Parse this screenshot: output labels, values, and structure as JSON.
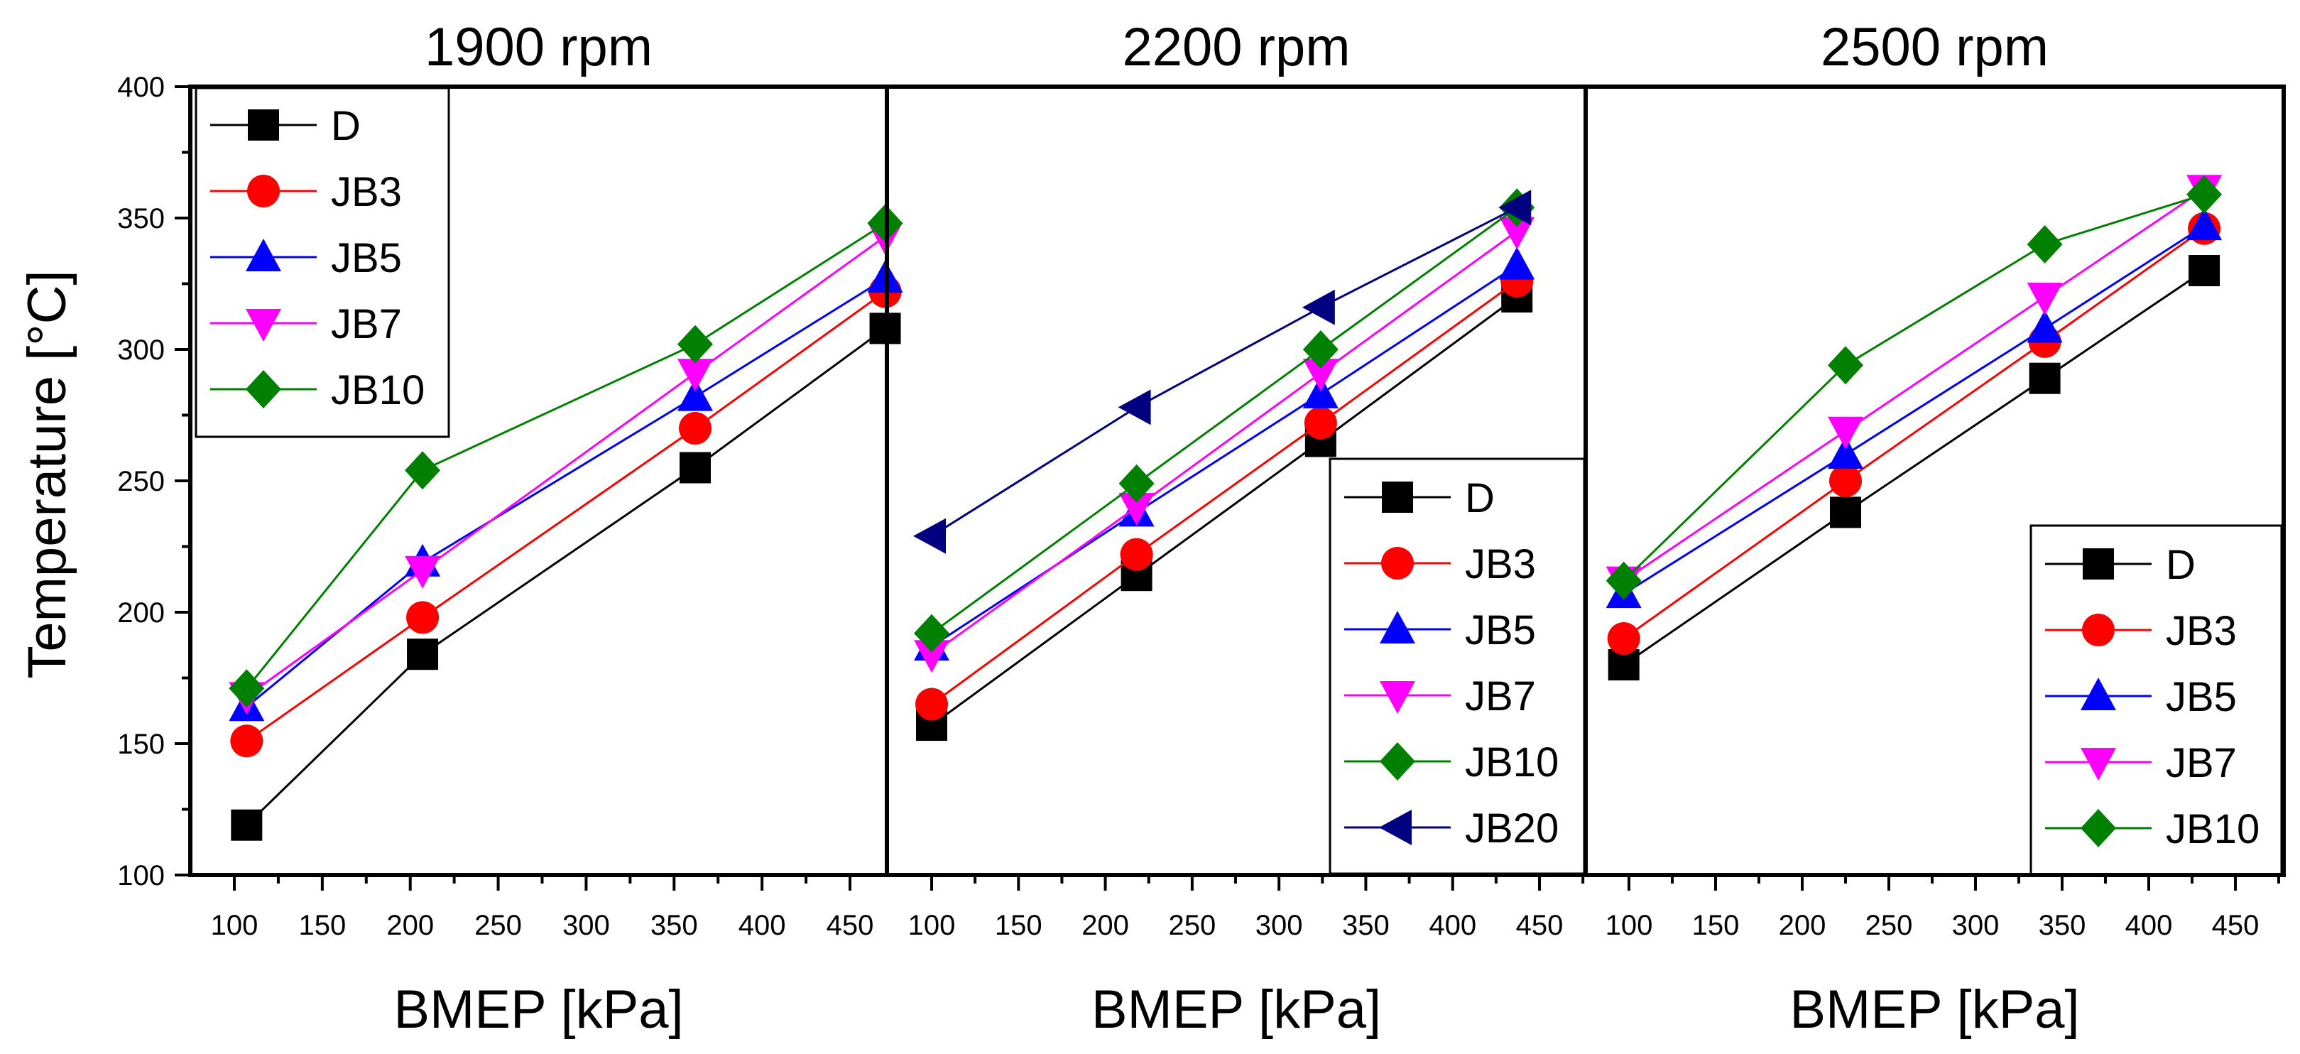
{
  "chart_data": {
    "type": "line",
    "ylabel": "Temperature [°C]",
    "ylim": [
      100,
      400
    ],
    "yticks": [
      100,
      150,
      200,
      250,
      300,
      350,
      400
    ],
    "xlim": [
      80,
      490
    ],
    "xticks": [
      100,
      150,
      200,
      250,
      300,
      350,
      400,
      450
    ],
    "xlabel": "BMEP [kPa]",
    "series_styles": {
      "D": {
        "color": "#000000",
        "marker": "square"
      },
      "JB3": {
        "color": "#ff0000",
        "marker": "circle"
      },
      "JB5": {
        "color": "#0000ff",
        "marker": "triangle-up"
      },
      "JB7": {
        "color": "#ff00ff",
        "marker": "triangle-down"
      },
      "JB10": {
        "color": "#008000",
        "marker": "diamond"
      },
      "JB20": {
        "color": "#000080",
        "marker": "triangle-left"
      }
    },
    "panels": [
      {
        "title": "1900 rpm",
        "legend_position": "top-left",
        "series": [
          {
            "name": "D",
            "x": [
              107,
              207,
              362,
              470
            ],
            "y": [
              119,
              184,
              255,
              308
            ]
          },
          {
            "name": "JB3",
            "x": [
              107,
              207,
              362,
              470
            ],
            "y": [
              151,
              198,
              270,
              322
            ]
          },
          {
            "name": "JB5",
            "x": [
              107,
              207,
              362,
              470
            ],
            "y": [
              164,
              219,
              282,
              327
            ]
          },
          {
            "name": "JB7",
            "x": [
              107,
              207,
              362,
              470
            ],
            "y": [
              168,
              216,
              291,
              343
            ]
          },
          {
            "name": "JB10",
            "x": [
              107,
              207,
              362,
              470
            ],
            "y": [
              171,
              254,
              302,
              348
            ]
          }
        ]
      },
      {
        "title": "2200 rpm",
        "legend_position": "bottom-right",
        "series": [
          {
            "name": "D",
            "x": [
              100,
              218,
              324,
              437
            ],
            "y": [
              157,
              214,
              265,
              320
            ]
          },
          {
            "name": "JB3",
            "x": [
              100,
              218,
              324,
              437
            ],
            "y": [
              165,
              222,
              272,
              326
            ]
          },
          {
            "name": "JB5",
            "x": [
              100,
              218,
              324,
              437
            ],
            "y": [
              187,
              238,
              283,
              332
            ]
          },
          {
            "name": "JB7",
            "x": [
              100,
              218,
              324,
              437
            ],
            "y": [
              184,
              240,
              291,
              345
            ]
          },
          {
            "name": "JB10",
            "x": [
              100,
              218,
              324,
              437
            ],
            "y": [
              192,
              249,
              300,
              354
            ]
          },
          {
            "name": "JB20",
            "x": [
              100,
              218,
              324,
              437
            ],
            "y": [
              229,
              278,
              316,
              354
            ]
          }
        ]
      },
      {
        "title": "2500 rpm",
        "legend_position": "bottom-right",
        "series": [
          {
            "name": "D",
            "x": [
              97,
              225,
              340,
              432
            ],
            "y": [
              180,
              238,
              289,
              330
            ]
          },
          {
            "name": "JB3",
            "x": [
              97,
              225,
              340,
              432
            ],
            "y": [
              190,
              250,
              303,
              346
            ]
          },
          {
            "name": "JB5",
            "x": [
              97,
              225,
              340,
              432
            ],
            "y": [
              207,
              260,
              308,
              347
            ]
          },
          {
            "name": "JB7",
            "x": [
              97,
              225,
              340,
              432
            ],
            "y": [
              212,
              269,
              320,
              361
            ]
          },
          {
            "name": "JB10",
            "x": [
              97,
              225,
              340,
              432
            ],
            "y": [
              212,
              294,
              340,
              359
            ]
          }
        ]
      }
    ]
  }
}
